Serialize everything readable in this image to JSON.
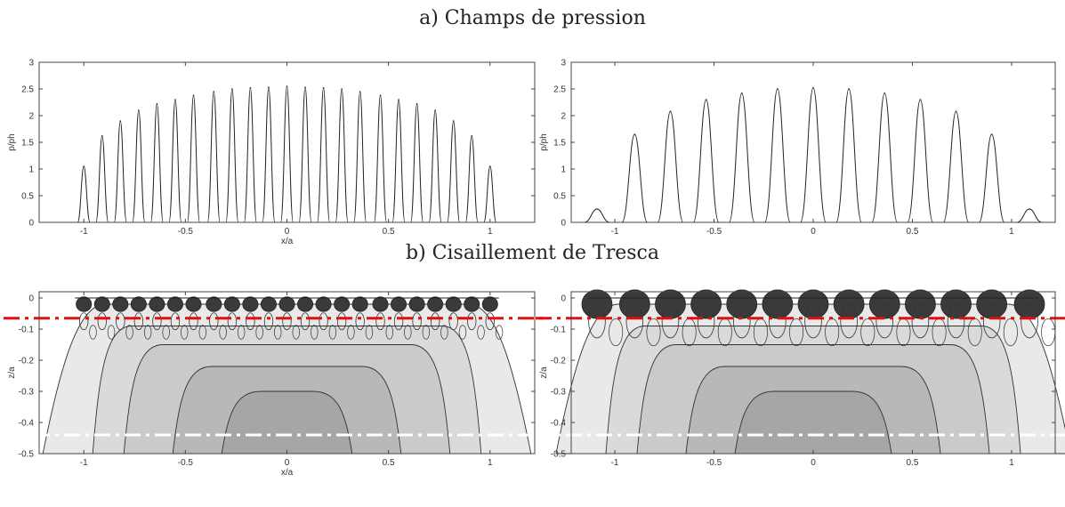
{
  "section_titles": {
    "a": "a) Champs de pression",
    "b": "b) Cisaillement de Tresca"
  },
  "chart_data": [
    {
      "id": "pressure-left",
      "type": "line",
      "xlabel": "x/a",
      "ylabel": "p/ph",
      "xlim": [
        -1.22,
        1.22
      ],
      "ylim": [
        0,
        3
      ],
      "xticks": [
        -1,
        -0.5,
        0,
        0.5,
        1
      ],
      "xtick_labels": [
        "-1",
        "-0.5",
        "0",
        "0.5",
        "1"
      ],
      "yticks": [
        0,
        0.5,
        1,
        1.5,
        2,
        2.5,
        3
      ],
      "ytick_labels": [
        "0",
        "0.5",
        "1",
        "1.5",
        "2",
        "2.5",
        "3"
      ],
      "peaks_x": [
        -1.0,
        -0.91,
        -0.82,
        -0.73,
        -0.64,
        -0.55,
        -0.46,
        -0.36,
        -0.27,
        -0.18,
        -0.09,
        0,
        0.09,
        0.18,
        0.27,
        0.36,
        0.46,
        0.55,
        0.64,
        0.73,
        0.82,
        0.91,
        1.0
      ],
      "peaks_y": [
        1.05,
        1.62,
        1.9,
        2.1,
        2.22,
        2.3,
        2.38,
        2.45,
        2.5,
        2.52,
        2.53,
        2.55,
        2.53,
        2.52,
        2.5,
        2.45,
        2.38,
        2.3,
        2.22,
        2.1,
        1.9,
        1.62,
        1.05
      ]
    },
    {
      "id": "pressure-right",
      "type": "line",
      "xlabel": "",
      "ylabel": "p/ph",
      "xlim": [
        -1.22,
        1.22
      ],
      "ylim": [
        0,
        3
      ],
      "xticks": [
        -1,
        -0.5,
        0,
        0.5,
        1
      ],
      "xtick_labels": [
        "-1",
        "-0.5",
        "0",
        "0.5",
        "1"
      ],
      "yticks": [
        0,
        0.5,
        1,
        1.5,
        2,
        2.5,
        3
      ],
      "ytick_labels": [
        "0",
        "0.5",
        "1",
        "1.5",
        "2",
        "2.5",
        "3"
      ],
      "peaks_x": [
        -1.09,
        -0.9,
        -0.72,
        -0.54,
        -0.36,
        -0.18,
        0,
        0.18,
        0.36,
        0.54,
        0.72,
        0.9,
        1.09
      ],
      "peaks_y": [
        0.25,
        1.65,
        2.08,
        2.3,
        2.42,
        2.5,
        2.52,
        2.5,
        2.42,
        2.3,
        2.08,
        1.65,
        0.25
      ]
    },
    {
      "id": "tresca-left",
      "type": "contour",
      "xlabel": "x/a",
      "ylabel": "z/a",
      "xlim": [
        -1.22,
        1.22
      ],
      "ylim": [
        -0.5,
        0.02
      ],
      "xticks": [
        -1,
        -0.5,
        0,
        0.5,
        1
      ],
      "xtick_labels": [
        "-1",
        "-0.5",
        "0",
        "0.5",
        "1"
      ],
      "yticks": [
        0,
        -0.1,
        -0.2,
        -0.3,
        -0.4,
        -0.5
      ],
      "ytick_labels": [
        "0",
        "-0.1",
        "-0.2",
        "-0.3",
        "-0.4",
        "-0.5"
      ],
      "contact_x": [
        -1.0,
        -0.91,
        -0.82,
        -0.73,
        -0.64,
        -0.55,
        -0.46,
        -0.36,
        -0.27,
        -0.18,
        -0.09,
        0,
        0.09,
        0.18,
        0.27,
        0.36,
        0.46,
        0.55,
        0.64,
        0.73,
        0.82,
        0.91,
        1.0
      ],
      "lines": [
        {
          "y": -0.065,
          "color": "#e01010",
          "style": "dash-dot"
        },
        {
          "y": -0.44,
          "color": "#ffffff",
          "style": "dash-dot"
        }
      ]
    },
    {
      "id": "tresca-right",
      "type": "contour",
      "xlabel": "",
      "ylabel": "z/a",
      "xlim": [
        -1.22,
        1.22
      ],
      "ylim": [
        -0.5,
        0.02
      ],
      "xticks": [
        -1,
        -0.5,
        0,
        0.5,
        1
      ],
      "xtick_labels": [
        "-1",
        "-0.5",
        "0",
        "0.5",
        "1"
      ],
      "yticks": [
        0,
        -0.1,
        -0.2,
        -0.3,
        -0.4,
        -0.5
      ],
      "ytick_labels": [
        "0",
        "-0.1",
        "-0.2",
        "-0.3",
        "-0.4",
        "-0.5"
      ],
      "contact_x": [
        -1.09,
        -0.9,
        -0.72,
        -0.54,
        -0.36,
        -0.18,
        0,
        0.18,
        0.36,
        0.54,
        0.72,
        0.9,
        1.09
      ],
      "lines": [
        {
          "y": -0.065,
          "color": "#e01010",
          "style": "dash-dot"
        },
        {
          "y": -0.44,
          "color": "#ffffff",
          "style": "dash-dot"
        }
      ]
    }
  ]
}
